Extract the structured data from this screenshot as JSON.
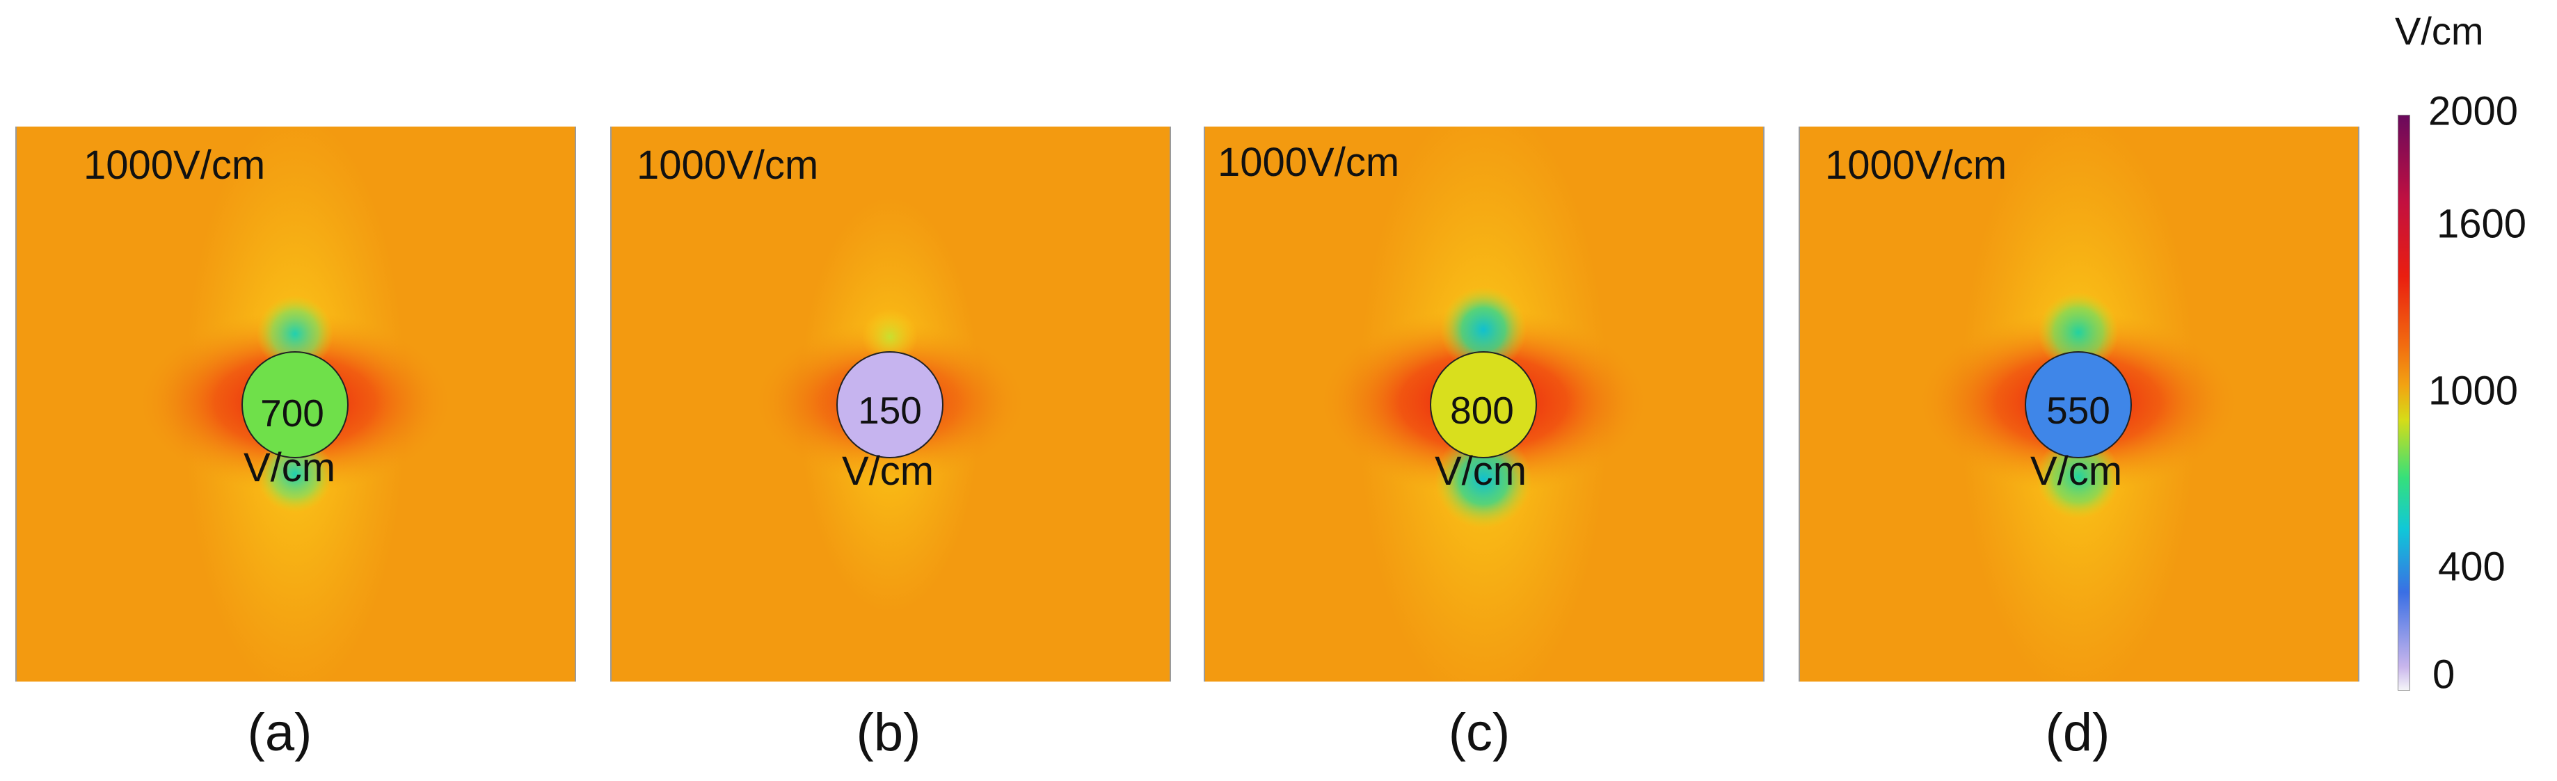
{
  "applied_field_label": "1000V/cm",
  "panels": [
    {
      "caption": "(a)",
      "inside_value": "700",
      "unit": "V/cm",
      "inside_color": "#6fe04a"
    },
    {
      "caption": "(b)",
      "inside_value": "150",
      "unit": "V/cm",
      "inside_color": "#c6b4ef"
    },
    {
      "caption": "(c)",
      "inside_value": "800",
      "unit": "V/cm",
      "inside_color": "#d9df1d"
    },
    {
      "caption": "(d)",
      "inside_value": "550",
      "unit": "V/cm",
      "inside_color": "#3f86e8"
    }
  ],
  "colorbar": {
    "unit": "V/cm",
    "ticks": [
      "2000",
      "1600",
      "1000",
      "400",
      "0"
    ],
    "colors": {
      "background": "#f39a10",
      "high": "#ea1e10",
      "max": "#6a0a5c",
      "low": "#f4f4f8",
      "green": "#36e07a",
      "cyan": "#10c8d8"
    }
  }
}
